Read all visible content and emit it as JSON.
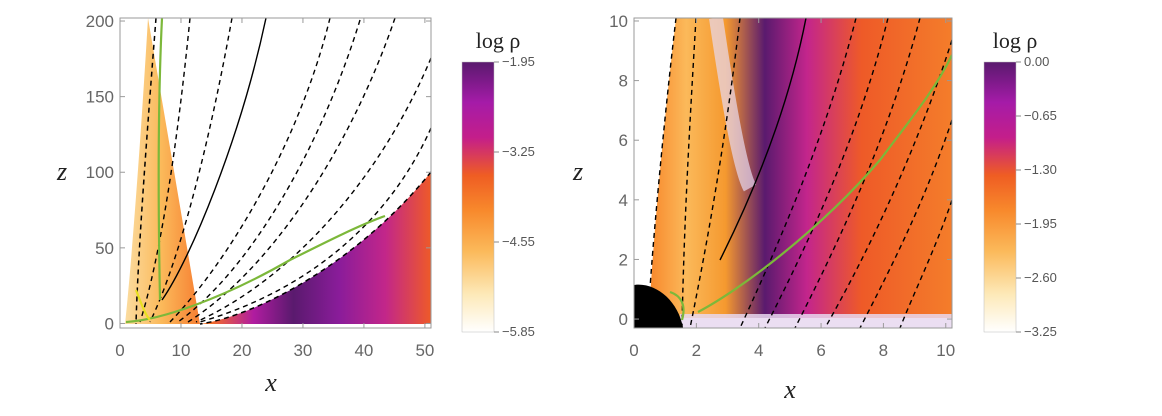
{
  "chart_data": [
    {
      "type": "heatmap",
      "xlabel": "x",
      "ylabel": "z",
      "xlim": [
        0,
        51
      ],
      "ylim": [
        -3,
        202
      ],
      "xticks": [
        "0",
        "10",
        "20",
        "30",
        "40",
        "50"
      ],
      "xtick_values": [
        0,
        10,
        20,
        30,
        40,
        50
      ],
      "yticks": [
        "0",
        "50",
        "100",
        "150",
        "200"
      ],
      "ytick_values": [
        0,
        50,
        100,
        150,
        200
      ],
      "colorbar": {
        "title": "log ρ",
        "range": [
          -5.85,
          -1.95
        ],
        "ticks": [
          "−1.95",
          "−3.25",
          "−4.55",
          "−5.85"
        ],
        "tick_values": [
          -1.95,
          -3.25,
          -4.55,
          -5.85
        ]
      },
      "colormap": [
        "#ffffff",
        "#fde9b8",
        "#fbb95a",
        "#f8892c",
        "#ef5d23",
        "#c41e8a",
        "#a51ba8",
        "#5a1a6e"
      ],
      "boundary_line": "black solid",
      "field_lines": "black dashed",
      "green_curve_color": "#7cb83a",
      "yellow_curve_color": "#e8e020"
    },
    {
      "type": "heatmap",
      "xlabel": "x",
      "ylabel": "z",
      "xlim": [
        0,
        10.2
      ],
      "ylim": [
        -0.3,
        10.1
      ],
      "xticks": [
        "0",
        "2",
        "4",
        "6",
        "8",
        "10"
      ],
      "xtick_values": [
        0,
        2,
        4,
        6,
        8,
        10
      ],
      "yticks": [
        "0",
        "2",
        "4",
        "6",
        "8",
        "10"
      ],
      "ytick_values": [
        0,
        2,
        4,
        6,
        8,
        10
      ],
      "colorbar": {
        "title": "log ρ",
        "range": [
          -3.25,
          0.0
        ],
        "ticks": [
          "0.00",
          "−0.65",
          "−1.30",
          "−1.95",
          "−2.60",
          "−3.25"
        ],
        "tick_values": [
          0.0,
          -0.65,
          -1.3,
          -1.95,
          -2.6,
          -3.25
        ]
      },
      "colormap": [
        "#ffffff",
        "#fde9b8",
        "#fbb95a",
        "#f8892c",
        "#ef5d23",
        "#c41e8a",
        "#a51ba8",
        "#5a1a6e"
      ],
      "central_object_color": "#000000",
      "green_curve_color": "#7cb83a",
      "highlight_band_color": "#e7d8f0"
    }
  ]
}
